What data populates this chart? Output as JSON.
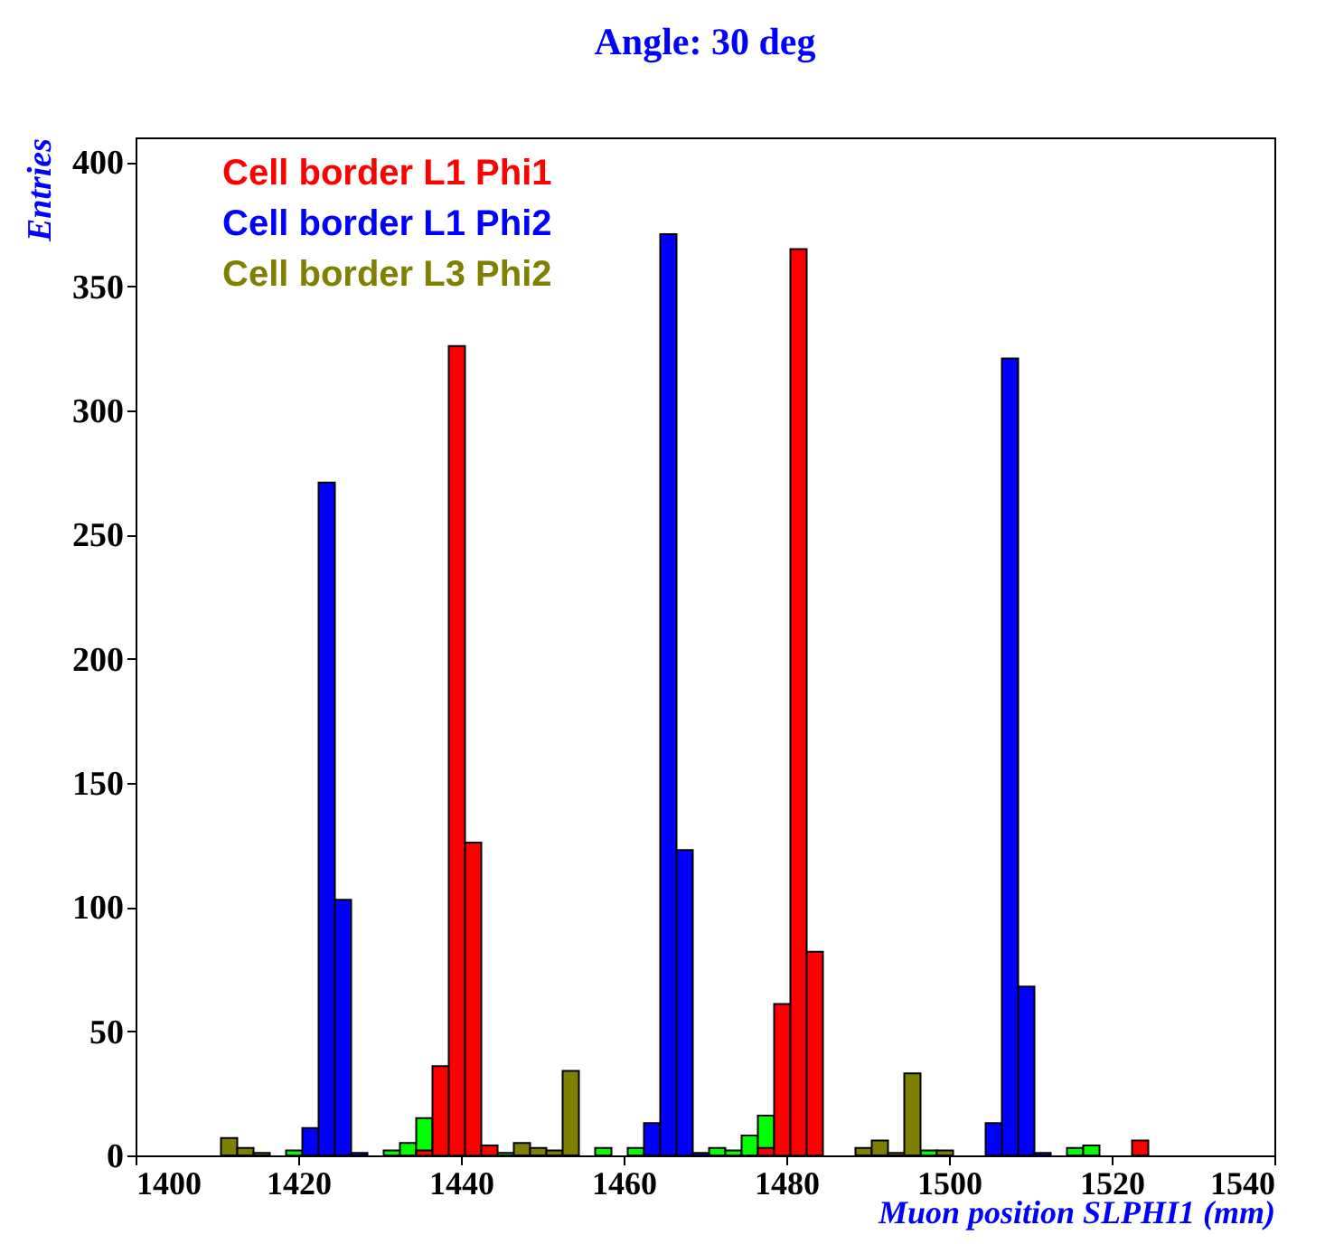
{
  "chart_data": {
    "type": "histogram",
    "title": "Angle: 30 deg",
    "xlabel": "Muon position SLPHI1 (mm)",
    "ylabel": "Entries",
    "bins": [
      1408.5,
      1410.5,
      1412.5,
      1414.5,
      1416.5,
      1418.5,
      1420.5,
      1422.5,
      1424.5,
      1426.5,
      1428.5,
      1430.5,
      1432.5,
      1434.5,
      1436.5,
      1438.5,
      1440.5,
      1442.5,
      1444.5,
      1446.5,
      1448.5,
      1450.5,
      1452.5,
      1454.5,
      1456.5,
      1458.5,
      1460.5,
      1462.5,
      1464.5,
      1466.5,
      1468.5,
      1470.5,
      1472.5,
      1474.5,
      1476.5,
      1478.5,
      1480.5,
      1482.5,
      1484.5,
      1486.5,
      1488.5,
      1490.5,
      1492.5,
      1494.5,
      1496.5,
      1498.5,
      1500.5,
      1502.5,
      1504.5,
      1506.5,
      1508.5,
      1510.5,
      1512.5,
      1514.5,
      1516.5,
      1518.5,
      1520.5,
      1522.5,
      1524.5,
      1526.5
    ],
    "series": [
      {
        "color": "#00ff00",
        "values": [
          0,
          0,
          0,
          0,
          0,
          2,
          0,
          0,
          0,
          0,
          0,
          2,
          5,
          15,
          0,
          0,
          0,
          0,
          1,
          0,
          0,
          0,
          0,
          0,
          3,
          0,
          3,
          0,
          0,
          0,
          0,
          3,
          2,
          8,
          16,
          0,
          0,
          0,
          0,
          0,
          0,
          0,
          0,
          0,
          2,
          0,
          0,
          0,
          0,
          0,
          0,
          0,
          0,
          3,
          4,
          0,
          0,
          0,
          0
        ]
      },
      {
        "name": "Cell border L3 Phi2",
        "color": "#808000",
        "values": [
          0,
          7,
          3,
          1,
          0,
          0,
          0,
          0,
          0,
          0,
          0,
          0,
          0,
          0,
          0,
          0,
          0,
          0,
          0,
          5,
          3,
          2,
          34,
          0,
          0,
          0,
          0,
          0,
          0,
          0,
          0,
          0,
          0,
          0,
          0,
          0,
          0,
          0,
          0,
          0,
          3,
          6,
          1,
          33,
          0,
          2,
          0,
          0,
          0,
          0,
          0,
          0,
          0,
          0,
          0,
          0,
          0,
          0,
          0
        ]
      },
      {
        "name": "Cell border L1 Phi2",
        "color": "#0000ff",
        "values": [
          0,
          0,
          0,
          0,
          0,
          0,
          11,
          271,
          103,
          1,
          0,
          0,
          0,
          0,
          0,
          0,
          0,
          0,
          0,
          0,
          0,
          0,
          0,
          0,
          0,
          0,
          0,
          13,
          371,
          123,
          1,
          0,
          0,
          0,
          0,
          0,
          0,
          0,
          0,
          0,
          0,
          0,
          0,
          0,
          0,
          0,
          0,
          0,
          13,
          321,
          68,
          1,
          0,
          0,
          0,
          0,
          0,
          0,
          0
        ]
      },
      {
        "name": "Cell border L1 Phi1",
        "color": "#ff0000",
        "values": [
          0,
          0,
          0,
          0,
          0,
          0,
          0,
          0,
          0,
          0,
          0,
          0,
          0,
          2,
          36,
          326,
          126,
          4,
          0,
          0,
          0,
          0,
          0,
          0,
          0,
          0,
          0,
          0,
          0,
          0,
          0,
          0,
          0,
          0,
          3,
          61,
          365,
          82,
          0,
          0,
          0,
          0,
          0,
          0,
          0,
          0,
          0,
          0,
          0,
          0,
          0,
          0,
          0,
          0,
          0,
          0,
          0,
          6,
          0
        ]
      }
    ],
    "legend": "top left",
    "grid": false,
    "xlim": [
      1400,
      1540
    ],
    "xticks": [
      1400,
      1420,
      1440,
      1460,
      1480,
      1500,
      1520,
      1540
    ],
    "ylim": [
      0,
      410
    ],
    "yticks": [
      0,
      50,
      100,
      150,
      200,
      250,
      300,
      350,
      400
    ]
  }
}
